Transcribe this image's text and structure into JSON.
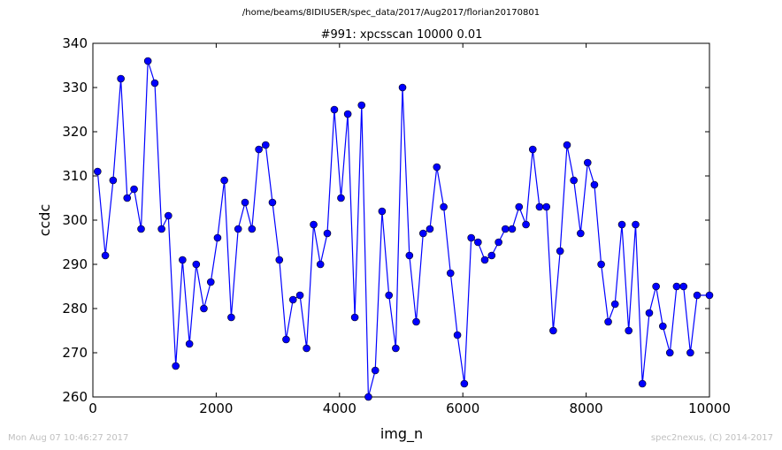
{
  "suptitle": "/home/beams/8IDIUSER/spec_data/2017/Aug2017/florian20170801",
  "footer": {
    "timestamp": "Mon Aug 07 10:46:27 2017",
    "credit": "spec2nexus, (C) 2014-2017"
  },
  "chart_data": {
    "type": "line",
    "title": "#991: xpcsscan 10000 0.01",
    "xlabel": "img_n",
    "ylabel": "ccdc",
    "xlim": [
      0,
      10000
    ],
    "ylim": [
      260,
      340
    ],
    "xticks": [
      "0",
      "2000",
      "4000",
      "6000",
      "8000",
      "10000"
    ],
    "yticks": [
      "260",
      "270",
      "280",
      "290",
      "300",
      "310",
      "320",
      "330",
      "340"
    ],
    "grid": false,
    "marker": "circle",
    "color": "#0000ff",
    "series": [
      {
        "x": [
          76,
          202,
          328,
          454,
          556,
          668,
          782,
          892,
          1004,
          1114,
          1224,
          1344,
          1454,
          1566,
          1676,
          1800,
          1912,
          2022,
          2132,
          2244,
          2356,
          2468,
          2580,
          2692,
          2802,
          2912,
          3024,
          3134,
          3246,
          3358,
          3466,
          3580,
          3690,
          3802,
          3916,
          4024,
          4134,
          4248,
          4358,
          4468,
          4580,
          4690,
          4802,
          4912,
          5022,
          5134,
          5244,
          5356,
          5466,
          5578,
          5690,
          5800,
          5912,
          6024,
          6136,
          6246,
          6356,
          6468,
          6580,
          6690,
          6800,
          6912,
          7024,
          7134,
          7244,
          7356,
          7466,
          7578,
          7690,
          7800,
          7910,
          8024,
          8134,
          8244,
          8358,
          8468,
          8580,
          8690,
          8802,
          8912,
          9024,
          9134,
          9244,
          9358,
          9468,
          9580,
          9690,
          9800,
          10000
        ],
        "y": [
          311,
          292,
          309,
          332,
          305,
          307,
          298,
          336,
          331,
          298,
          301,
          267,
          291,
          272,
          290,
          280,
          286,
          296,
          309,
          278,
          298,
          304,
          298,
          316,
          317,
          304,
          291,
          273,
          282,
          283,
          271,
          299,
          290,
          297,
          325,
          305,
          324,
          278,
          326,
          260,
          266,
          302,
          283,
          271,
          330,
          292,
          277,
          297,
          298,
          312,
          303,
          288,
          274,
          263,
          296,
          295,
          291,
          292,
          295,
          298,
          298,
          303,
          299,
          316,
          303,
          303,
          275,
          293,
          317,
          309,
          297,
          313,
          308,
          290,
          277,
          281,
          299,
          275,
          299,
          263,
          279,
          285,
          276,
          270,
          285,
          285,
          270,
          283,
          283
        ]
      }
    ]
  }
}
